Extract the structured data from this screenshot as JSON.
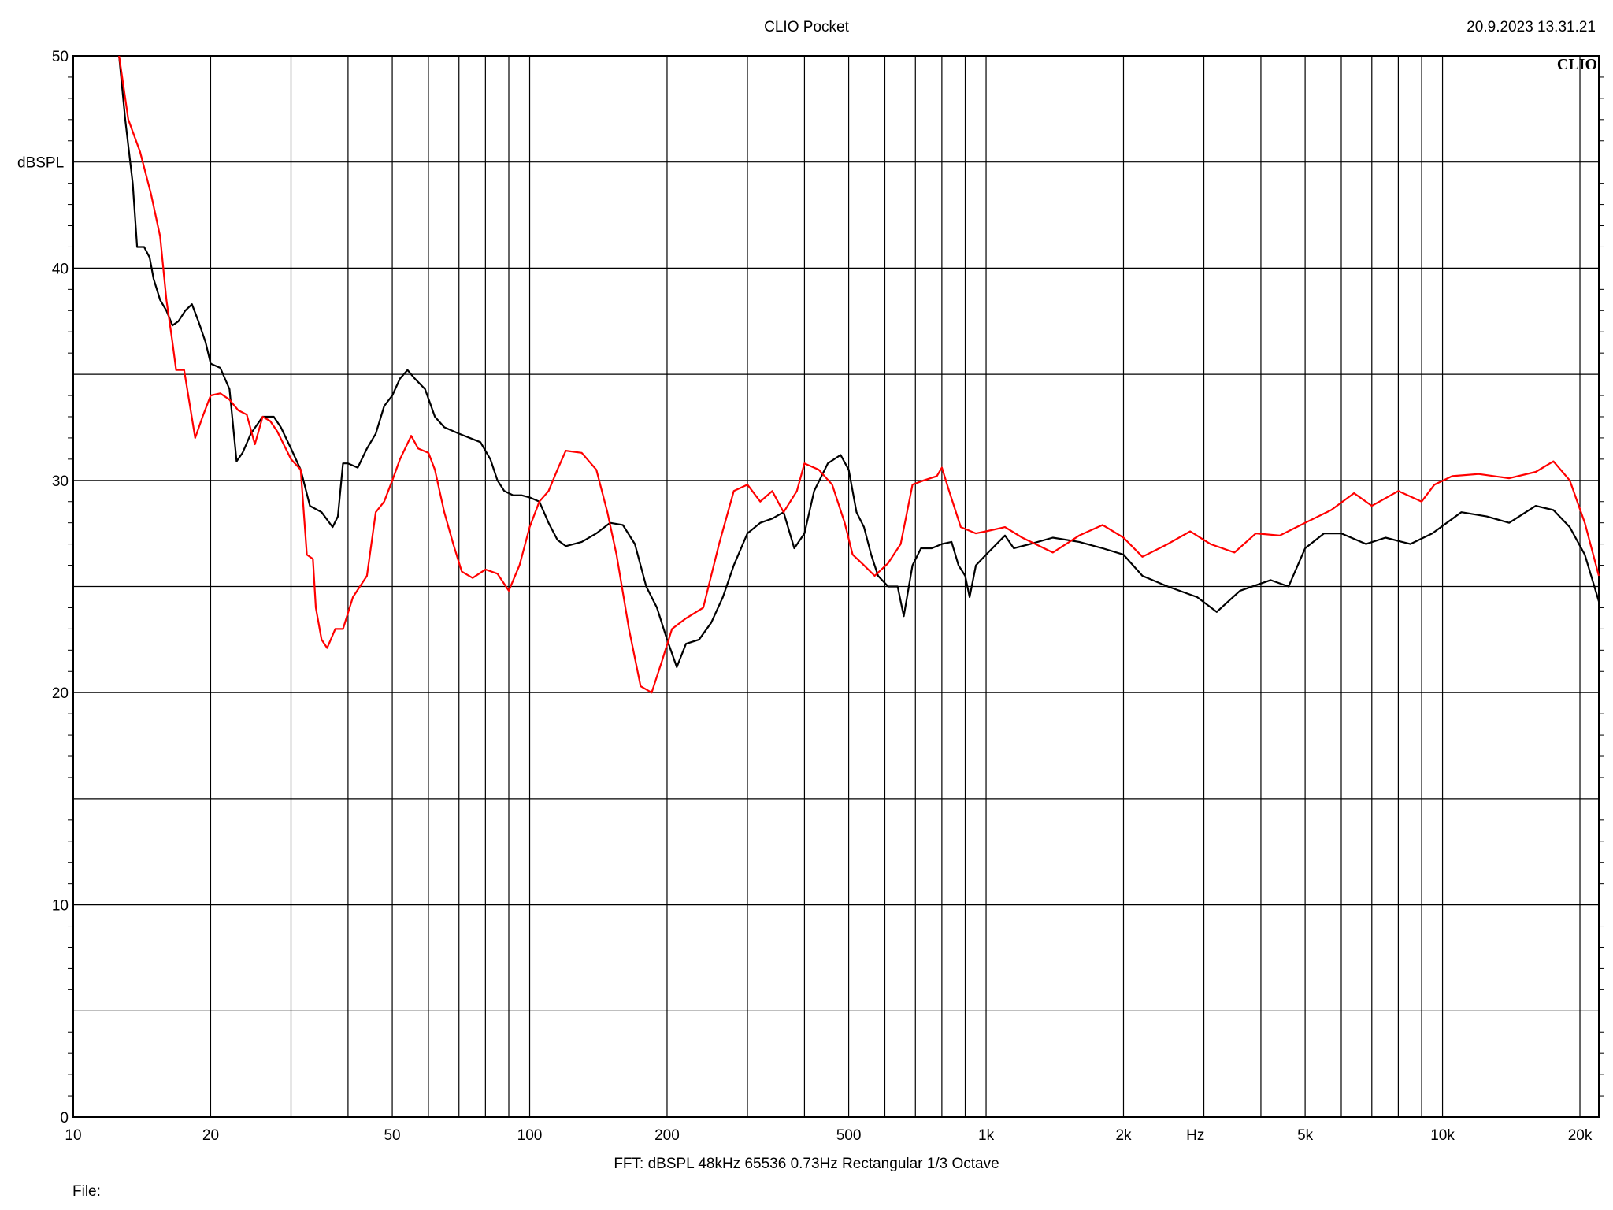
{
  "header": {
    "title": "CLIO Pocket",
    "timestamp": "20.9.2023 13.31.21"
  },
  "logo": "CLIO",
  "footer": {
    "fft_line": "FFT:  dBSPL  48kHz   65536  0.73Hz  Rectangular  1/3 Octave",
    "file_label": "File:"
  },
  "chart_data": {
    "type": "line",
    "title": "",
    "xlabel": "Hz",
    "ylabel": "dBSPL",
    "x_scale": "log",
    "xlim": [
      10,
      22000
    ],
    "ylim": [
      0,
      50
    ],
    "grid": true,
    "x_tick_labels": [
      {
        "value": 10,
        "label": "10"
      },
      {
        "value": 20,
        "label": "20"
      },
      {
        "value": 50,
        "label": "50"
      },
      {
        "value": 100,
        "label": "100"
      },
      {
        "value": 200,
        "label": "200"
      },
      {
        "value": 500,
        "label": "500"
      },
      {
        "value": 1000,
        "label": "1k"
      },
      {
        "value": 2000,
        "label": "2k"
      },
      {
        "value": 5000,
        "label": "5k"
      },
      {
        "value": 10000,
        "label": "10k"
      },
      {
        "value": 20000,
        "label": "20k"
      }
    ],
    "y_tick_labels": [
      {
        "value": 0,
        "label": "0"
      },
      {
        "value": 10,
        "label": "10"
      },
      {
        "value": 20,
        "label": "20"
      },
      {
        "value": 30,
        "label": "30"
      },
      {
        "value": 40,
        "label": "40"
      },
      {
        "value": 50,
        "label": "50"
      }
    ],
    "x_grid": [
      20,
      30,
      40,
      50,
      60,
      70,
      80,
      90,
      100,
      200,
      300,
      400,
      500,
      600,
      700,
      800,
      900,
      1000,
      2000,
      3000,
      4000,
      5000,
      6000,
      7000,
      8000,
      9000,
      10000,
      20000
    ],
    "y_grid": [
      5,
      10,
      15,
      20,
      25,
      30,
      35,
      40,
      45,
      50
    ],
    "series": [
      {
        "color": "#000000",
        "points": [
          [
            12.6,
            50
          ],
          [
            13.0,
            47
          ],
          [
            13.5,
            44
          ],
          [
            13.8,
            41
          ],
          [
            14.3,
            41
          ],
          [
            14.7,
            40.5
          ],
          [
            15.0,
            39.5
          ],
          [
            15.5,
            38.5
          ],
          [
            16.0,
            38
          ],
          [
            16.5,
            37.3
          ],
          [
            17.0,
            37.5
          ],
          [
            17.6,
            38
          ],
          [
            18.2,
            38.3
          ],
          [
            18.8,
            37.5
          ],
          [
            19.5,
            36.5
          ],
          [
            20.0,
            35.5
          ],
          [
            21.0,
            35.3
          ],
          [
            22.0,
            34.3
          ],
          [
            22.8,
            30.9
          ],
          [
            23.5,
            31.3
          ],
          [
            24.5,
            32.2
          ],
          [
            26.0,
            33
          ],
          [
            27.5,
            33
          ],
          [
            28.5,
            32.5
          ],
          [
            30.0,
            31.5
          ],
          [
            31.5,
            30.5
          ],
          [
            33.0,
            28.8
          ],
          [
            35.0,
            28.5
          ],
          [
            37.0,
            27.8
          ],
          [
            38.0,
            28.3
          ],
          [
            39.0,
            30.8
          ],
          [
            40.0,
            30.8
          ],
          [
            42.0,
            30.6
          ],
          [
            44.0,
            31.5
          ],
          [
            46.0,
            32.2
          ],
          [
            48.0,
            33.5
          ],
          [
            50.0,
            34
          ],
          [
            52.0,
            34.8
          ],
          [
            54.0,
            35.2
          ],
          [
            56.0,
            34.8
          ],
          [
            59.0,
            34.3
          ],
          [
            62.0,
            33
          ],
          [
            65.0,
            32.5
          ],
          [
            70.0,
            32.2
          ],
          [
            78.0,
            31.8
          ],
          [
            82.0,
            31
          ],
          [
            85.0,
            30
          ],
          [
            88.0,
            29.5
          ],
          [
            92.0,
            29.3
          ],
          [
            96.0,
            29.3
          ],
          [
            100.0,
            29.2
          ],
          [
            105.0,
            29
          ],
          [
            110.0,
            28
          ],
          [
            115.0,
            27.2
          ],
          [
            120.0,
            26.9
          ],
          [
            130.0,
            27.1
          ],
          [
            140.0,
            27.5
          ],
          [
            150.0,
            28
          ],
          [
            160.0,
            27.9
          ],
          [
            170.0,
            27
          ],
          [
            180.0,
            25
          ],
          [
            190.0,
            24
          ],
          [
            200.0,
            22.5
          ],
          [
            210.0,
            21.2
          ],
          [
            220.0,
            22.3
          ],
          [
            235.0,
            22.5
          ],
          [
            250.0,
            23.3
          ],
          [
            265.0,
            24.5
          ],
          [
            280.0,
            26
          ],
          [
            300.0,
            27.5
          ],
          [
            320.0,
            28
          ],
          [
            340.0,
            28.2
          ],
          [
            360.0,
            28.5
          ],
          [
            380.0,
            26.8
          ],
          [
            400.0,
            27.5
          ],
          [
            420.0,
            29.5
          ],
          [
            450.0,
            30.8
          ],
          [
            480.0,
            31.2
          ],
          [
            500.0,
            30.5
          ],
          [
            520.0,
            28.5
          ],
          [
            540.0,
            27.8
          ],
          [
            560.0,
            26.5
          ],
          [
            580.0,
            25.5
          ],
          [
            610.0,
            25
          ],
          [
            640.0,
            25
          ],
          [
            660.0,
            23.6
          ],
          [
            690.0,
            26
          ],
          [
            720.0,
            26.8
          ],
          [
            760.0,
            26.8
          ],
          [
            800.0,
            27
          ],
          [
            840.0,
            27.1
          ],
          [
            870.0,
            26
          ],
          [
            900.0,
            25.5
          ],
          [
            920.0,
            24.5
          ],
          [
            950.0,
            26
          ],
          [
            1000.0,
            26.5
          ],
          [
            1100.0,
            27.4
          ],
          [
            1150.0,
            26.8
          ],
          [
            1250.0,
            27
          ],
          [
            1400.0,
            27.3
          ],
          [
            1600.0,
            27.1
          ],
          [
            1800.0,
            26.8
          ],
          [
            2000.0,
            26.5
          ],
          [
            2200.0,
            25.5
          ],
          [
            2500.0,
            25
          ],
          [
            2900.0,
            24.5
          ],
          [
            3200.0,
            23.8
          ],
          [
            3600.0,
            24.8
          ],
          [
            4200.0,
            25.3
          ],
          [
            4600.0,
            25
          ],
          [
            5000.0,
            26.8
          ],
          [
            5500.0,
            27.5
          ],
          [
            6000.0,
            27.5
          ],
          [
            6800.0,
            27
          ],
          [
            7500.0,
            27.3
          ],
          [
            8500.0,
            27
          ],
          [
            9500.0,
            27.5
          ],
          [
            11000.0,
            28.5
          ],
          [
            12500.0,
            28.3
          ],
          [
            14000.0,
            28
          ],
          [
            16000.0,
            28.8
          ],
          [
            17500.0,
            28.6
          ],
          [
            19000.0,
            27.8
          ],
          [
            20500.0,
            26.5
          ],
          [
            22000.0,
            24.3
          ]
        ]
      },
      {
        "color": "#ff0000",
        "points": [
          [
            12.6,
            50
          ],
          [
            13.2,
            47
          ],
          [
            14.0,
            45.5
          ],
          [
            14.8,
            43.5
          ],
          [
            15.5,
            41.5
          ],
          [
            16.0,
            38.5
          ],
          [
            16.5,
            36.5
          ],
          [
            16.8,
            35.2
          ],
          [
            17.5,
            35.2
          ],
          [
            18.5,
            32
          ],
          [
            19.2,
            33
          ],
          [
            20.0,
            34
          ],
          [
            21.0,
            34.1
          ],
          [
            22.0,
            33.8
          ],
          [
            23.0,
            33.3
          ],
          [
            24.0,
            33.1
          ],
          [
            25.0,
            31.7
          ],
          [
            26.0,
            33
          ],
          [
            27.0,
            32.8
          ],
          [
            28.0,
            32.3
          ],
          [
            30.0,
            31
          ],
          [
            31.5,
            30.5
          ],
          [
            32.5,
            26.5
          ],
          [
            33.5,
            26.3
          ],
          [
            34.0,
            24
          ],
          [
            35.0,
            22.5
          ],
          [
            36.0,
            22.1
          ],
          [
            37.5,
            23
          ],
          [
            39.0,
            23
          ],
          [
            41.0,
            24.5
          ],
          [
            44.0,
            25.5
          ],
          [
            46.0,
            28.5
          ],
          [
            48.0,
            29
          ],
          [
            50.0,
            30
          ],
          [
            52.0,
            31
          ],
          [
            55.0,
            32.1
          ],
          [
            57.0,
            31.5
          ],
          [
            60.0,
            31.3
          ],
          [
            62.0,
            30.5
          ],
          [
            65.0,
            28.5
          ],
          [
            68.0,
            27
          ],
          [
            71.0,
            25.7
          ],
          [
            75.0,
            25.4
          ],
          [
            80.0,
            25.8
          ],
          [
            85.0,
            25.6
          ],
          [
            90.0,
            24.8
          ],
          [
            95.0,
            26
          ],
          [
            100.0,
            27.8
          ],
          [
            105.0,
            29
          ],
          [
            110.0,
            29.5
          ],
          [
            115.0,
            30.5
          ],
          [
            120.0,
            31.4
          ],
          [
            130.0,
            31.3
          ],
          [
            140.0,
            30.5
          ],
          [
            148.0,
            28.5
          ],
          [
            155.0,
            26.5
          ],
          [
            165.0,
            23
          ],
          [
            175.0,
            20.3
          ],
          [
            185.0,
            20
          ],
          [
            195.0,
            21.5
          ],
          [
            205.0,
            23
          ],
          [
            220.0,
            23.5
          ],
          [
            240.0,
            24
          ],
          [
            260.0,
            27
          ],
          [
            280.0,
            29.5
          ],
          [
            300.0,
            29.8
          ],
          [
            320.0,
            29
          ],
          [
            340.0,
            29.5
          ],
          [
            360.0,
            28.5
          ],
          [
            385.0,
            29.5
          ],
          [
            400.0,
            30.8
          ],
          [
            430.0,
            30.5
          ],
          [
            460.0,
            29.8
          ],
          [
            490.0,
            28
          ],
          [
            510.0,
            26.5
          ],
          [
            540.0,
            26
          ],
          [
            570.0,
            25.5
          ],
          [
            610.0,
            26.1
          ],
          [
            650.0,
            27
          ],
          [
            690.0,
            29.8
          ],
          [
            730.0,
            30
          ],
          [
            780.0,
            30.2
          ],
          [
            800.0,
            30.6
          ],
          [
            830.0,
            29.5
          ],
          [
            880.0,
            27.8
          ],
          [
            950.0,
            27.5
          ],
          [
            1000.0,
            27.6
          ],
          [
            1100.0,
            27.8
          ],
          [
            1200.0,
            27.3
          ],
          [
            1400.0,
            26.6
          ],
          [
            1600.0,
            27.4
          ],
          [
            1800.0,
            27.9
          ],
          [
            2000.0,
            27.3
          ],
          [
            2200.0,
            26.4
          ],
          [
            2500.0,
            27
          ],
          [
            2800.0,
            27.6
          ],
          [
            3100.0,
            27
          ],
          [
            3500.0,
            26.6
          ],
          [
            3900.0,
            27.5
          ],
          [
            4400.0,
            27.4
          ],
          [
            5000.0,
            28
          ],
          [
            5700.0,
            28.6
          ],
          [
            6400.0,
            29.4
          ],
          [
            7000.0,
            28.8
          ],
          [
            8000.0,
            29.5
          ],
          [
            9000.0,
            29
          ],
          [
            9600.0,
            29.8
          ],
          [
            10500.0,
            30.2
          ],
          [
            12000.0,
            30.3
          ],
          [
            14000.0,
            30.1
          ],
          [
            16000.0,
            30.4
          ],
          [
            17500.0,
            30.9
          ],
          [
            19000.0,
            30
          ],
          [
            20500.0,
            28
          ],
          [
            22000.0,
            25.5
          ]
        ]
      }
    ]
  }
}
